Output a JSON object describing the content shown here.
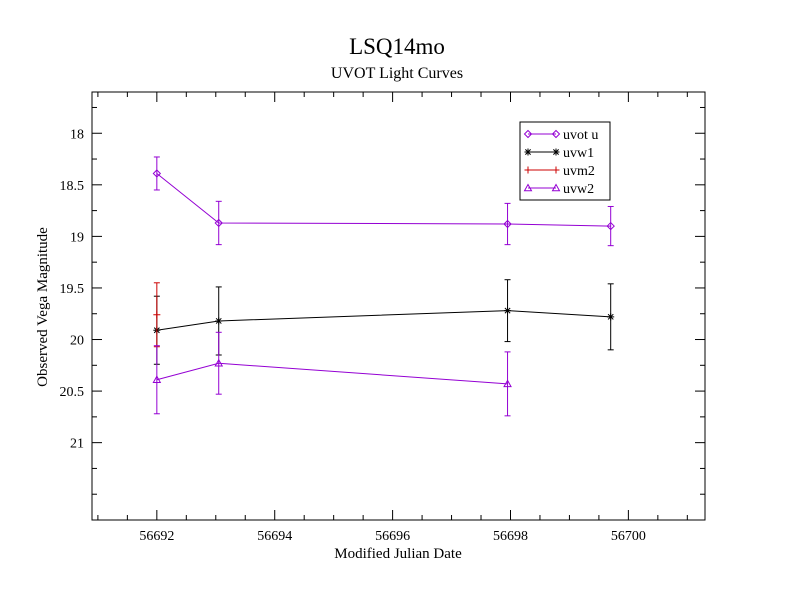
{
  "chart_data": {
    "type": "line",
    "title": "LSQ14mo",
    "subtitle": "UVOT Light Curves",
    "xlabel": "Modified Julian Date",
    "ylabel": "Observed Vega Magnitude",
    "xlim": [
      56690.9,
      56701.3
    ],
    "ylim": [
      21.75,
      17.6
    ],
    "y_inverted": true,
    "x_ticks": [
      56692,
      56694,
      56696,
      56698,
      56700
    ],
    "x_tick_labels": [
      "56692",
      "56694",
      "56696",
      "56698",
      "56700"
    ],
    "y_ticks": [
      18,
      18.5,
      19,
      19.5,
      20,
      20.5,
      21
    ],
    "y_tick_labels": [
      "18",
      "18.5",
      "19",
      "19.5",
      "20",
      "20.5",
      "21"
    ],
    "grid": false,
    "legend_position": "top-right",
    "series": [
      {
        "name": "uvot u",
        "color": "#9400d3",
        "marker": "diamond",
        "points": [
          {
            "x": 56692.0,
            "y": 18.39,
            "err": 0.16
          },
          {
            "x": 56693.05,
            "y": 18.87,
            "err": 0.21
          },
          {
            "x": 56697.95,
            "y": 18.88,
            "err": 0.2
          },
          {
            "x": 56699.7,
            "y": 18.9,
            "err": 0.19
          }
        ]
      },
      {
        "name": "uvw1",
        "color": "#000000",
        "marker": "star",
        "points": [
          {
            "x": 56692.0,
            "y": 19.91,
            "err": 0.33
          },
          {
            "x": 56693.05,
            "y": 19.82,
            "err": 0.33
          },
          {
            "x": 56697.95,
            "y": 19.72,
            "err": 0.3
          },
          {
            "x": 56699.7,
            "y": 19.78,
            "err": 0.32
          }
        ]
      },
      {
        "name": "uvm2",
        "color": "#cc0000",
        "marker": "plus",
        "points": [
          {
            "x": 56692.0,
            "y": 19.76,
            "err": 0.31
          }
        ]
      },
      {
        "name": "uvw2",
        "color": "#9400d3",
        "marker": "triangle",
        "points": [
          {
            "x": 56692.0,
            "y": 20.39,
            "err": 0.33
          },
          {
            "x": 56693.05,
            "y": 20.23,
            "err": 0.3
          },
          {
            "x": 56697.95,
            "y": 20.43,
            "err": 0.31
          }
        ]
      }
    ]
  }
}
